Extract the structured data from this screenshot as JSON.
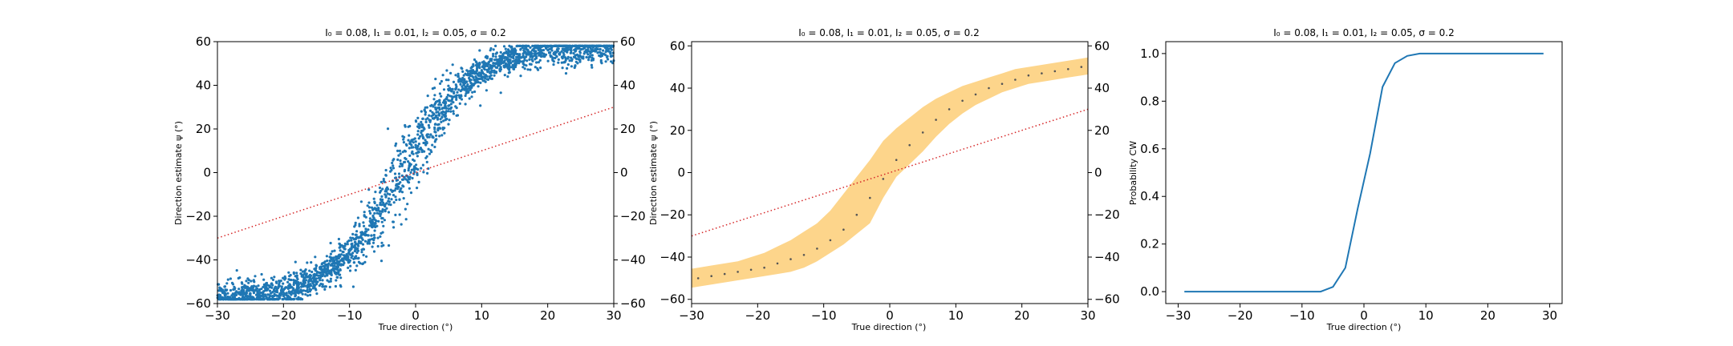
{
  "chart_data": [
    {
      "type": "scatter",
      "title": "I₀ = 0.08, I₁ = 0.01, I₂ = 0.05, σ = 0.2",
      "xlabel": "True direction (°)",
      "ylabel": "Direction estimate ψ (°)",
      "xlim": [
        -30,
        30
      ],
      "ylim": [
        -60,
        60
      ],
      "xticks": [
        "−30",
        "−20",
        "−10",
        "0",
        "10",
        "20",
        "30"
      ],
      "yticks": [
        "−60",
        "−40",
        "−20",
        "0",
        "20",
        "40",
        "60"
      ],
      "right_yticks": [
        "−60",
        "−40",
        "−20",
        "0",
        "20",
        "40",
        "60"
      ],
      "grid": false,
      "point_color": "#1f77b4",
      "identity_color": "#d62728",
      "identity_line": {
        "x": [
          -30,
          30
        ],
        "y": [
          -30,
          30
        ]
      },
      "trend": {
        "model": "tanh",
        "amplitude": 58,
        "scale": 11,
        "offset": -2,
        "noise": 3.5
      },
      "n_points": 2500
    },
    {
      "type": "area",
      "title": "I₀ = 0.08, I₁ = 0.01, I₂ = 0.05, σ = 0.2",
      "xlabel": "True direction (°)",
      "ylabel": "Direction estimate ψ (°)",
      "xlim": [
        -30,
        30
      ],
      "ylim": [
        -62,
        62
      ],
      "xticks": [
        "−30",
        "−20",
        "−10",
        "0",
        "10",
        "20",
        "30"
      ],
      "yticks": [
        "−60",
        "−40",
        "−20",
        "0",
        "20",
        "40",
        "60"
      ],
      "right_yticks": [
        "−60",
        "−40",
        "−20",
        "0",
        "20",
        "40",
        "60"
      ],
      "grid": false,
      "band_color": "#fdd58b",
      "point_color": "#555555",
      "identity_color": "#d62728",
      "identity_line": {
        "x": [
          -30,
          30
        ],
        "y": [
          -30,
          30
        ]
      },
      "x": [
        -29,
        -27,
        -25,
        -23,
        -21,
        -19,
        -17,
        -15,
        -13,
        -11,
        -9,
        -7,
        -5,
        -3,
        -1,
        1,
        3,
        5,
        7,
        9,
        11,
        13,
        15,
        17,
        19,
        21,
        23,
        25,
        27,
        29
      ],
      "mean": [
        -50,
        -49,
        -48,
        -47,
        -46,
        -45,
        -43,
        -41,
        -39,
        -36,
        -32,
        -27,
        -20,
        -12,
        -3,
        6,
        13,
        19,
        25,
        30,
        34,
        37,
        40,
        42,
        44,
        46,
        47,
        48,
        49,
        50
      ],
      "band_upper": [
        -45,
        -44,
        -43,
        -42,
        -40,
        -38,
        -35,
        -32,
        -28,
        -24,
        -18,
        -10,
        -2,
        6,
        15,
        21,
        26,
        31,
        35,
        38,
        41,
        43,
        45,
        47,
        49,
        50,
        51,
        52,
        53,
        54
      ],
      "band_lower": [
        -54,
        -53,
        -52,
        -51,
        -50,
        -49,
        -48,
        -47,
        -45,
        -42,
        -38,
        -34,
        -29,
        -24,
        -12,
        -2,
        4,
        10,
        17,
        23,
        28,
        32,
        35,
        38,
        40,
        42,
        43,
        44,
        45,
        46
      ]
    },
    {
      "type": "line",
      "title": "I₀ = 0.08, I₁ = 0.01, I₂ = 0.05, σ = 0.2",
      "xlabel": "True direction (°)",
      "ylabel": "Probability CW",
      "xlim": [
        -32,
        32
      ],
      "ylim": [
        -0.05,
        1.05
      ],
      "xticks": [
        "−30",
        "−20",
        "−10",
        "0",
        "10",
        "20",
        "30"
      ],
      "yticks": [
        "0.0",
        "0.2",
        "0.4",
        "0.6",
        "0.8",
        "1.0"
      ],
      "grid": false,
      "line_color": "#1f77b4",
      "x": [
        -29,
        -27,
        -25,
        -23,
        -21,
        -19,
        -17,
        -15,
        -13,
        -11,
        -9,
        -7,
        -5,
        -3,
        -1,
        1,
        3,
        5,
        7,
        9,
        11,
        13,
        15,
        17,
        19,
        21,
        23,
        25,
        27,
        29
      ],
      "y": [
        0,
        0,
        0,
        0,
        0,
        0,
        0,
        0,
        0,
        0,
        0,
        0,
        0.02,
        0.1,
        0.35,
        0.58,
        0.86,
        0.96,
        0.99,
        1.0,
        1.0,
        1.0,
        1.0,
        1.0,
        1.0,
        1.0,
        1.0,
        1.0,
        1.0,
        1.0
      ]
    }
  ]
}
